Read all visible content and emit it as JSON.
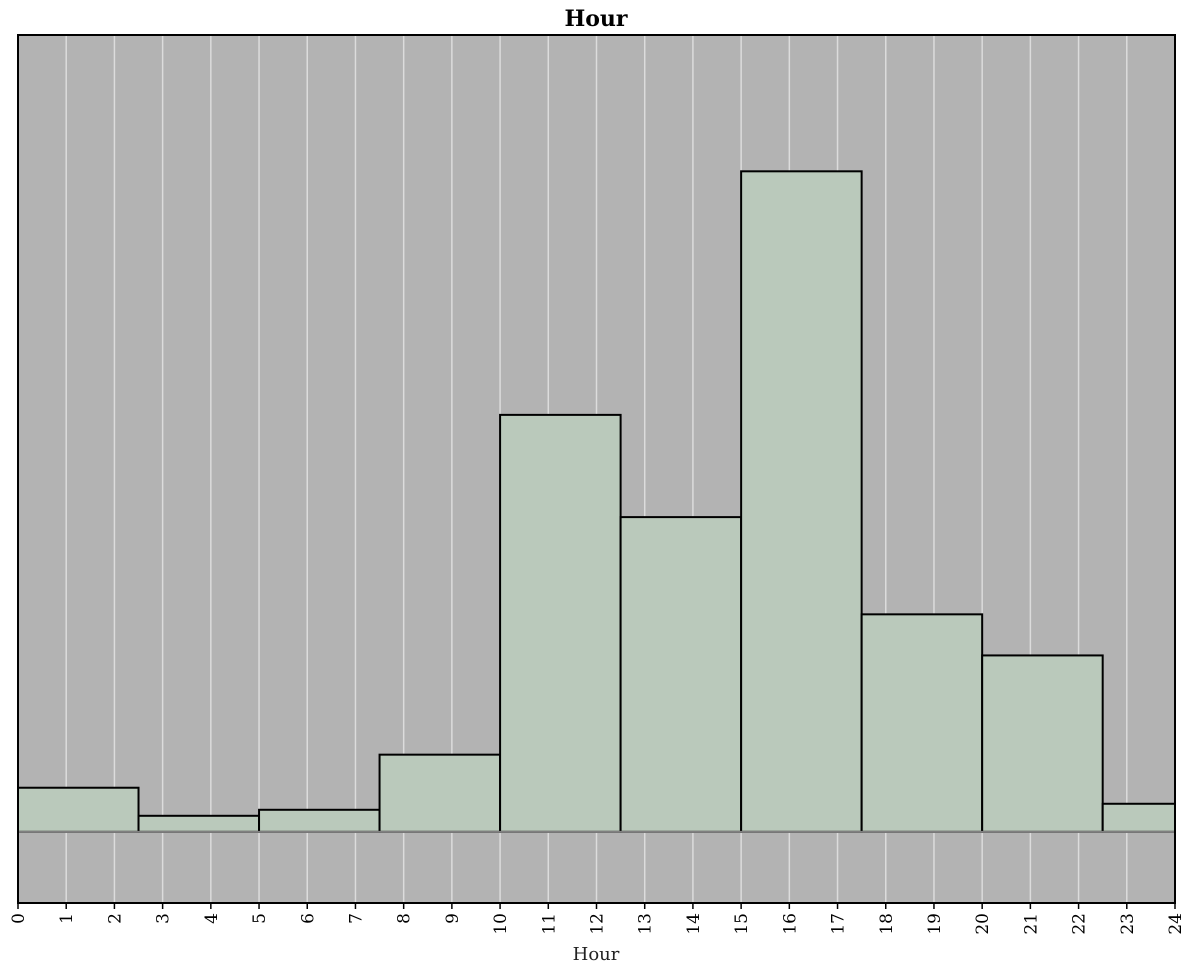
{
  "chart_data": {
    "type": "bar",
    "title": "Hour",
    "xlabel": "Hour",
    "ylabel": "",
    "x_ticks": [
      "0",
      "1",
      "2",
      "3",
      "4",
      "5",
      "6",
      "7",
      "8",
      "9",
      "10",
      "11",
      "12",
      "13",
      "14",
      "15",
      "16",
      "17",
      "18",
      "19",
      "20",
      "21",
      "22",
      "23",
      "24"
    ],
    "xlim": [
      0,
      24
    ],
    "bins": [
      {
        "start": 0,
        "end": 2.5,
        "value": 44
      },
      {
        "start": 2.5,
        "end": 5,
        "value": 16
      },
      {
        "start": 5,
        "end": 7.5,
        "value": 22
      },
      {
        "start": 7.5,
        "end": 10,
        "value": 77
      },
      {
        "start": 10,
        "end": 12.5,
        "value": 416
      },
      {
        "start": 12.5,
        "end": 15,
        "value": 314
      },
      {
        "start": 15,
        "end": 17.5,
        "value": 659
      },
      {
        "start": 17.5,
        "end": 20,
        "value": 217
      },
      {
        "start": 20,
        "end": 22.5,
        "value": 176
      },
      {
        "start": 22.5,
        "end": 24,
        "value": 28
      }
    ],
    "ylim": [
      -71,
      795
    ],
    "grid": true,
    "colors": {
      "background": "#b3b3b3",
      "bar_fill": "#bac9bb",
      "bar_stroke": "#000000",
      "gridline": "#dcdcdc",
      "baseline": "#808080"
    }
  }
}
